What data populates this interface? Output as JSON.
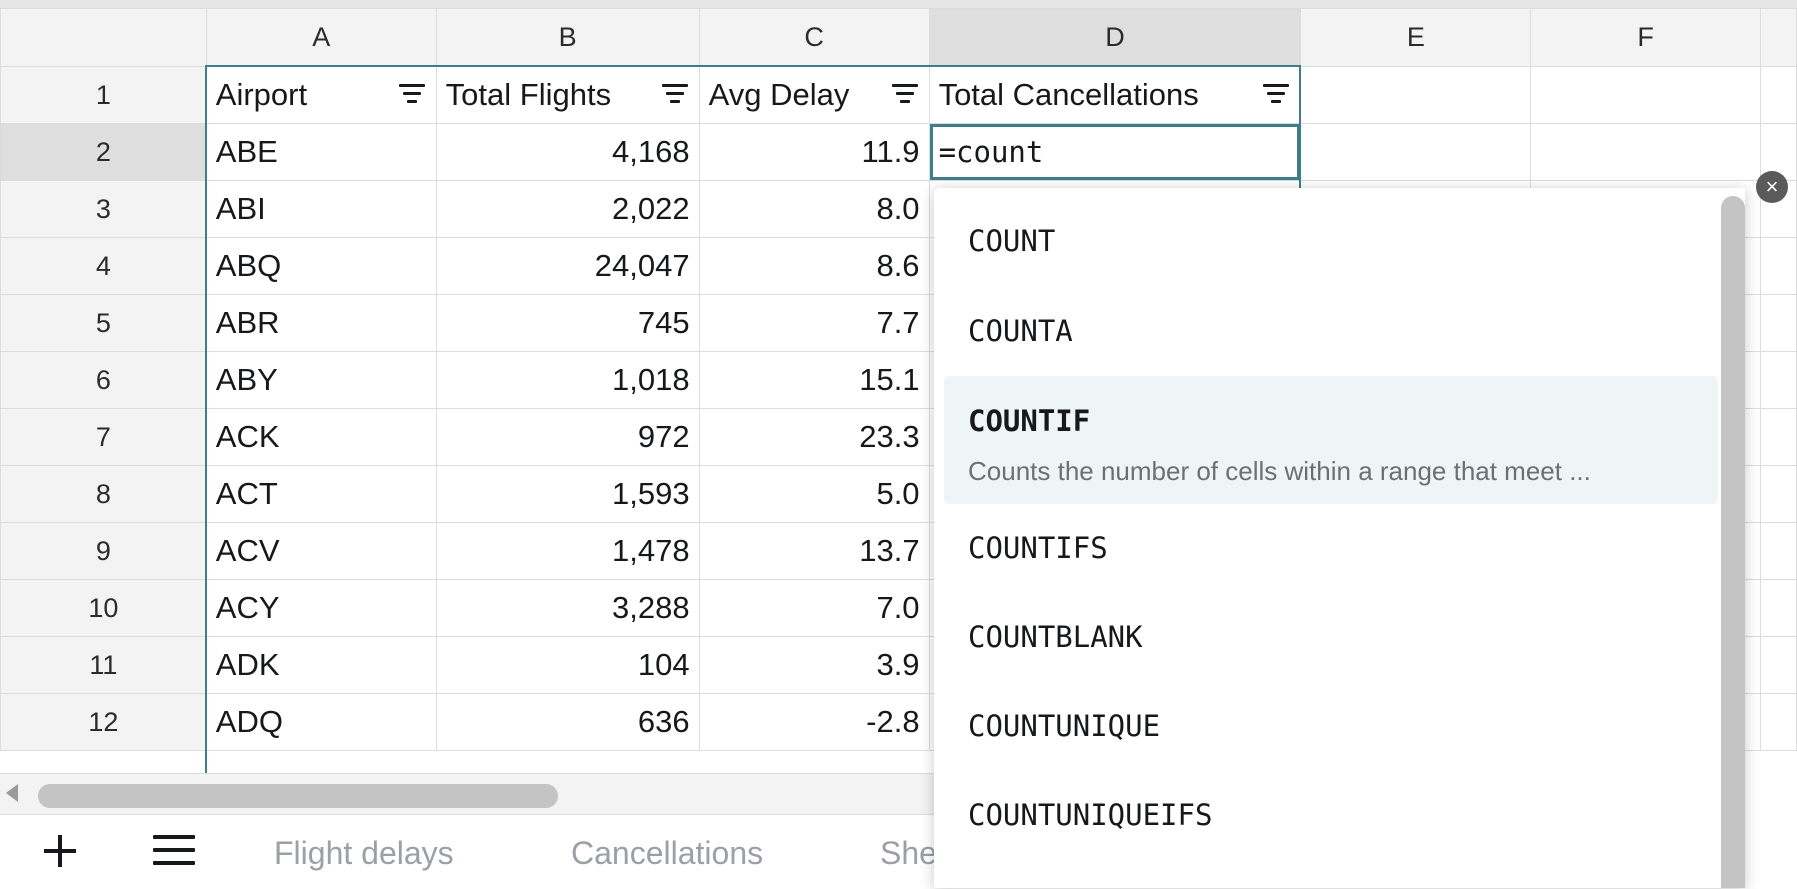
{
  "columns": [
    "A",
    "B",
    "C",
    "D",
    "E",
    "F"
  ],
  "header_row": {
    "row_number": "1",
    "cells": [
      "Airport",
      "Total Flights",
      "Avg Delay",
      "Total Cancellations"
    ]
  },
  "rows": [
    {
      "n": "2",
      "airport": "ABE",
      "flights": "4,168",
      "delay": "11.9"
    },
    {
      "n": "3",
      "airport": "ABI",
      "flights": "2,022",
      "delay": "8.0"
    },
    {
      "n": "4",
      "airport": "ABQ",
      "flights": "24,047",
      "delay": "8.6"
    },
    {
      "n": "5",
      "airport": "ABR",
      "flights": "745",
      "delay": "7.7"
    },
    {
      "n": "6",
      "airport": "ABY",
      "flights": "1,018",
      "delay": "15.1"
    },
    {
      "n": "7",
      "airport": "ACK",
      "flights": "972",
      "delay": "23.3"
    },
    {
      "n": "8",
      "airport": "ACT",
      "flights": "1,593",
      "delay": "5.0"
    },
    {
      "n": "9",
      "airport": "ACV",
      "flights": "1,478",
      "delay": "13.7"
    },
    {
      "n": "10",
      "airport": "ACY",
      "flights": "3,288",
      "delay": "7.0"
    },
    {
      "n": "11",
      "airport": "ADK",
      "flights": "104",
      "delay": "3.9"
    },
    {
      "n": "12",
      "airport": "ADQ",
      "flights": "636",
      "delay": "-2.8"
    }
  ],
  "editor": {
    "value": "=count"
  },
  "autocomplete": {
    "items": [
      "COUNT",
      "COUNTA",
      "COUNTIF",
      "COUNTIFS",
      "COUNTBLANK",
      "COUNTUNIQUE",
      "COUNTUNIQUEIFS"
    ],
    "active": {
      "name": "COUNTIF",
      "description": "Counts the number of cells within a range that meet ..."
    }
  },
  "close_icon_glyph": "×",
  "sheet_tabs": [
    "Flight delays",
    "Cancellations",
    "She"
  ],
  "icons": {
    "add": "plus-icon",
    "menu": "menu-icon",
    "filter": "filter-icon",
    "close": "close-icon",
    "scroll_left": "scroll-left-arrow-icon"
  },
  "colors": {
    "accent": "#3f7d8c",
    "highlight": "#edf5f7",
    "header_bg": "#f3f3f3",
    "selected_header_bg": "#dedede"
  }
}
